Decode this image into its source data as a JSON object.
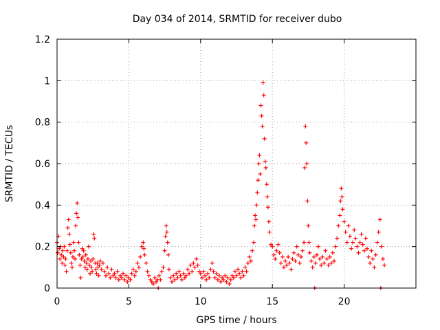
{
  "chart_data": {
    "type": "scatter",
    "title": "Day 034 of 2014, SRMTID for receiver dubo",
    "xlabel": "GPS time / hours",
    "ylabel": "SRMTID / TECUs",
    "xlim": [
      0,
      25
    ],
    "ylim": [
      0,
      1.2
    ],
    "xticks": [
      0,
      5,
      10,
      15,
      20
    ],
    "xtick_labels": [
      "0",
      "5",
      "10",
      "15",
      "20"
    ],
    "yticks": [
      0,
      0.2,
      0.4,
      0.6,
      0.8,
      1,
      1.2
    ],
    "ytick_labels": [
      "0",
      "0.2",
      "0.4",
      "0.6",
      "0.8",
      "1",
      "1.2"
    ],
    "grid": true,
    "marker": "plus",
    "color": "#ff0000",
    "series": [
      {
        "name": "SRMTID",
        "points": [
          [
            0.0,
            0.22
          ],
          [
            0.05,
            0.17
          ],
          [
            0.1,
            0.25
          ],
          [
            0.15,
            0.19
          ],
          [
            0.2,
            0.14
          ],
          [
            0.25,
            0.2
          ],
          [
            0.3,
            0.16
          ],
          [
            0.35,
            0.12
          ],
          [
            0.4,
            0.18
          ],
          [
            0.45,
            0.15
          ],
          [
            0.5,
            0.2
          ],
          [
            0.55,
            0.11
          ],
          [
            0.6,
            0.14
          ],
          [
            0.65,
            0.08
          ],
          [
            0.7,
            0.18
          ],
          [
            0.75,
            0.29
          ],
          [
            0.8,
            0.33
          ],
          [
            0.85,
            0.26
          ],
          [
            0.9,
            0.21
          ],
          [
            0.95,
            0.17
          ],
          [
            1.0,
            0.12
          ],
          [
            1.05,
            0.1
          ],
          [
            1.1,
            0.15
          ],
          [
            1.15,
            0.22
          ],
          [
            1.2,
            0.18
          ],
          [
            1.25,
            0.14
          ],
          [
            1.3,
            0.3
          ],
          [
            1.35,
            0.36
          ],
          [
            1.4,
            0.41
          ],
          [
            1.45,
            0.34
          ],
          [
            1.5,
            0.22
          ],
          [
            1.55,
            0.16
          ],
          [
            1.6,
            0.11
          ],
          [
            1.65,
            0.05
          ],
          [
            1.7,
            0.14
          ],
          [
            1.75,
            0.19
          ],
          [
            1.8,
            0.15
          ],
          [
            1.85,
            0.18
          ],
          [
            1.9,
            0.13
          ],
          [
            1.95,
            0.1
          ],
          [
            2.0,
            0.16
          ],
          [
            2.05,
            0.12
          ],
          [
            2.1,
            0.09
          ],
          [
            2.15,
            0.14
          ],
          [
            2.2,
            0.2
          ],
          [
            2.25,
            0.11
          ],
          [
            2.3,
            0.07
          ],
          [
            2.35,
            0.13
          ],
          [
            2.4,
            0.1
          ],
          [
            2.45,
            0.08
          ],
          [
            2.5,
            0.14
          ],
          [
            2.55,
            0.26
          ],
          [
            2.6,
            0.24
          ],
          [
            2.65,
            0.12
          ],
          [
            2.7,
            0.09
          ],
          [
            2.75,
            0.07
          ],
          [
            2.8,
            0.12
          ],
          [
            2.85,
            0.1
          ],
          [
            2.9,
            0.06
          ],
          [
            2.95,
            0.11
          ],
          [
            3.0,
            0.13
          ],
          [
            3.1,
            0.09
          ],
          [
            3.2,
            0.12
          ],
          [
            3.3,
            0.08
          ],
          [
            3.4,
            0.06
          ],
          [
            3.5,
            0.1
          ],
          [
            3.6,
            0.07
          ],
          [
            3.7,
            0.05
          ],
          [
            3.8,
            0.09
          ],
          [
            3.9,
            0.06
          ],
          [
            4.0,
            0.07
          ],
          [
            4.1,
            0.05
          ],
          [
            4.2,
            0.08
          ],
          [
            4.3,
            0.04
          ],
          [
            4.4,
            0.06
          ],
          [
            4.5,
            0.05
          ],
          [
            4.6,
            0.07
          ],
          [
            4.7,
            0.04
          ],
          [
            4.8,
            0.06
          ],
          [
            4.9,
            0.03
          ],
          [
            5.0,
            0.05
          ],
          [
            5.1,
            0.04
          ],
          [
            5.2,
            0.07
          ],
          [
            5.3,
            0.09
          ],
          [
            5.4,
            0.06
          ],
          [
            5.5,
            0.08
          ],
          [
            5.6,
            0.12
          ],
          [
            5.7,
            0.1
          ],
          [
            5.8,
            0.15
          ],
          [
            5.9,
            0.2
          ],
          [
            6.0,
            0.22
          ],
          [
            6.05,
            0.19
          ],
          [
            6.1,
            0.16
          ],
          [
            6.2,
            0.12
          ],
          [
            6.3,
            0.08
          ],
          [
            6.4,
            0.06
          ],
          [
            6.5,
            0.04
          ],
          [
            6.6,
            0.03
          ],
          [
            6.7,
            0.02
          ],
          [
            6.8,
            0.05
          ],
          [
            6.9,
            0.03
          ],
          [
            7.0,
            0.04
          ],
          [
            7.05,
            0.0
          ],
          [
            7.1,
            0.06
          ],
          [
            7.2,
            0.04
          ],
          [
            7.3,
            0.08
          ],
          [
            7.4,
            0.1
          ],
          [
            7.5,
            0.18
          ],
          [
            7.55,
            0.25
          ],
          [
            7.6,
            0.3
          ],
          [
            7.65,
            0.27
          ],
          [
            7.7,
            0.22
          ],
          [
            7.75,
            0.16
          ],
          [
            7.8,
            0.09
          ],
          [
            7.9,
            0.05
          ],
          [
            8.0,
            0.03
          ],
          [
            8.1,
            0.06
          ],
          [
            8.2,
            0.04
          ],
          [
            8.3,
            0.07
          ],
          [
            8.4,
            0.05
          ],
          [
            8.5,
            0.08
          ],
          [
            8.6,
            0.06
          ],
          [
            8.7,
            0.04
          ],
          [
            8.8,
            0.07
          ],
          [
            8.9,
            0.05
          ],
          [
            9.0,
            0.06
          ],
          [
            9.1,
            0.09
          ],
          [
            9.2,
            0.07
          ],
          [
            9.3,
            0.11
          ],
          [
            9.4,
            0.08
          ],
          [
            9.5,
            0.12
          ],
          [
            9.6,
            0.1
          ],
          [
            9.7,
            0.14
          ],
          [
            9.8,
            0.11
          ],
          [
            9.9,
            0.08
          ],
          [
            10.0,
            0.07
          ],
          [
            10.1,
            0.05
          ],
          [
            10.2,
            0.08
          ],
          [
            10.3,
            0.06
          ],
          [
            10.4,
            0.04
          ],
          [
            10.5,
            0.07
          ],
          [
            10.6,
            0.05
          ],
          [
            10.7,
            0.09
          ],
          [
            10.8,
            0.12
          ],
          [
            10.9,
            0.08
          ],
          [
            11.0,
            0.05
          ],
          [
            11.1,
            0.07
          ],
          [
            11.2,
            0.04
          ],
          [
            11.3,
            0.06
          ],
          [
            11.4,
            0.03
          ],
          [
            11.5,
            0.05
          ],
          [
            11.6,
            0.04
          ],
          [
            11.7,
            0.06
          ],
          [
            11.8,
            0.03
          ],
          [
            11.9,
            0.05
          ],
          [
            12.0,
            0.02
          ],
          [
            12.1,
            0.04
          ],
          [
            12.2,
            0.06
          ],
          [
            12.3,
            0.05
          ],
          [
            12.4,
            0.08
          ],
          [
            12.5,
            0.06
          ],
          [
            12.6,
            0.09
          ],
          [
            12.7,
            0.07
          ],
          [
            12.8,
            0.05
          ],
          [
            12.9,
            0.08
          ],
          [
            13.0,
            0.06
          ],
          [
            13.1,
            0.1
          ],
          [
            13.2,
            0.08
          ],
          [
            13.3,
            0.12
          ],
          [
            13.4,
            0.15
          ],
          [
            13.5,
            0.13
          ],
          [
            13.6,
            0.18
          ],
          [
            13.7,
            0.22
          ],
          [
            13.75,
            0.3
          ],
          [
            13.8,
            0.35
          ],
          [
            13.85,
            0.33
          ],
          [
            13.9,
            0.4
          ],
          [
            13.95,
            0.46
          ],
          [
            14.0,
            0.52
          ],
          [
            14.05,
            0.6
          ],
          [
            14.1,
            0.64
          ],
          [
            14.15,
            0.55
          ],
          [
            14.2,
            0.88
          ],
          [
            14.25,
            0.83
          ],
          [
            14.3,
            0.78
          ],
          [
            14.35,
            0.99
          ],
          [
            14.4,
            0.93
          ],
          [
            14.45,
            0.72
          ],
          [
            14.5,
            0.61
          ],
          [
            14.55,
            0.58
          ],
          [
            14.6,
            0.5
          ],
          [
            14.65,
            0.44
          ],
          [
            14.7,
            0.39
          ],
          [
            14.75,
            0.32
          ],
          [
            14.8,
            0.27
          ],
          [
            14.9,
            0.21
          ],
          [
            15.0,
            0.2
          ],
          [
            15.1,
            0.16
          ],
          [
            15.2,
            0.14
          ],
          [
            15.3,
            0.18
          ],
          [
            15.4,
            0.21
          ],
          [
            15.5,
            0.17
          ],
          [
            15.6,
            0.12
          ],
          [
            15.7,
            0.15
          ],
          [
            15.8,
            0.1
          ],
          [
            15.9,
            0.13
          ],
          [
            16.0,
            0.11
          ],
          [
            16.1,
            0.15
          ],
          [
            16.2,
            0.12
          ],
          [
            16.3,
            0.09
          ],
          [
            16.4,
            0.14
          ],
          [
            16.5,
            0.17
          ],
          [
            16.6,
            0.13
          ],
          [
            16.7,
            0.2
          ],
          [
            16.8,
            0.16
          ],
          [
            16.9,
            0.12
          ],
          [
            17.0,
            0.15
          ],
          [
            17.1,
            0.18
          ],
          [
            17.2,
            0.22
          ],
          [
            17.25,
            0.58
          ],
          [
            17.3,
            0.78
          ],
          [
            17.35,
            0.7
          ],
          [
            17.4,
            0.6
          ],
          [
            17.45,
            0.42
          ],
          [
            17.5,
            0.3
          ],
          [
            17.55,
            0.22
          ],
          [
            17.6,
            0.17
          ],
          [
            17.7,
            0.13
          ],
          [
            17.8,
            0.1
          ],
          [
            17.9,
            0.15
          ],
          [
            17.95,
            0.0
          ],
          [
            18.0,
            0.12
          ],
          [
            18.1,
            0.16
          ],
          [
            18.2,
            0.2
          ],
          [
            18.3,
            0.14
          ],
          [
            18.4,
            0.11
          ],
          [
            18.5,
            0.15
          ],
          [
            18.6,
            0.12
          ],
          [
            18.7,
            0.18
          ],
          [
            18.8,
            0.14
          ],
          [
            18.9,
            0.11
          ],
          [
            19.0,
            0.15
          ],
          [
            19.1,
            0.12
          ],
          [
            19.2,
            0.17
          ],
          [
            19.3,
            0.13
          ],
          [
            19.4,
            0.2
          ],
          [
            19.5,
            0.24
          ],
          [
            19.6,
            0.3
          ],
          [
            19.7,
            0.35
          ],
          [
            19.75,
            0.42
          ],
          [
            19.8,
            0.48
          ],
          [
            19.85,
            0.44
          ],
          [
            19.9,
            0.38
          ],
          [
            20.0,
            0.32
          ],
          [
            20.1,
            0.27
          ],
          [
            20.2,
            0.22
          ],
          [
            20.3,
            0.3
          ],
          [
            20.4,
            0.25
          ],
          [
            20.5,
            0.19
          ],
          [
            20.6,
            0.22
          ],
          [
            20.7,
            0.28
          ],
          [
            20.8,
            0.24
          ],
          [
            20.9,
            0.2
          ],
          [
            21.0,
            0.17
          ],
          [
            21.1,
            0.22
          ],
          [
            21.2,
            0.26
          ],
          [
            21.3,
            0.21
          ],
          [
            21.4,
            0.18
          ],
          [
            21.5,
            0.24
          ],
          [
            21.6,
            0.19
          ],
          [
            21.7,
            0.15
          ],
          [
            21.8,
            0.12
          ],
          [
            21.9,
            0.18
          ],
          [
            22.0,
            0.14
          ],
          [
            22.1,
            0.1
          ],
          [
            22.2,
            0.16
          ],
          [
            22.3,
            0.22
          ],
          [
            22.4,
            0.27
          ],
          [
            22.5,
            0.33
          ],
          [
            22.55,
            0.0
          ],
          [
            22.6,
            0.2
          ],
          [
            22.7,
            0.14
          ],
          [
            22.8,
            0.11
          ]
        ]
      }
    ]
  }
}
